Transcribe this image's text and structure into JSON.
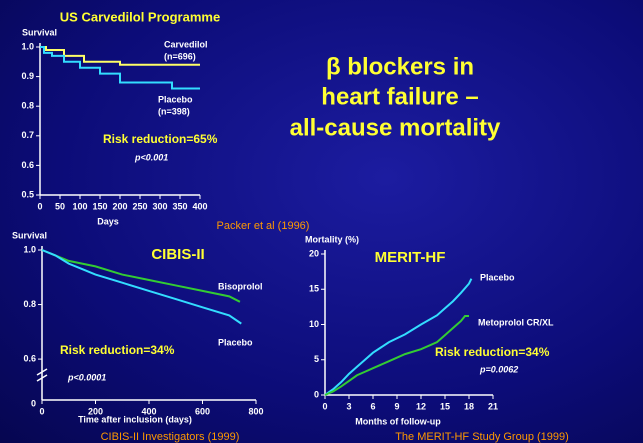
{
  "title": [
    "β blockers  in",
    "heart failure –",
    "all-cause  mortality"
  ],
  "chart_data": [
    {
      "type": "line",
      "title": "US Carvedilol Programme",
      "ylabel": "Survival",
      "xlabel": "Days",
      "xlim": [
        0,
        400
      ],
      "xticks": [
        0,
        50,
        100,
        150,
        200,
        250,
        300,
        350,
        400
      ],
      "ylim": [
        0.5,
        1.0
      ],
      "yticks": [
        0.5,
        0.6,
        0.7,
        0.8,
        0.9,
        {
          "value": 1,
          "label": "1.0"
        }
      ],
      "series": [
        {
          "name": "Carvedilol",
          "n_label": "(n=696)",
          "color": "#ffff66",
          "x": [
            0,
            15,
            15,
            60,
            60,
            110,
            110,
            200,
            200,
            400
          ],
          "values": [
            1,
            1,
            0.99,
            0.99,
            0.97,
            0.97,
            0.95,
            0.95,
            0.94,
            0.94
          ]
        },
        {
          "name": "Placebo",
          "n_label": "(n=398)",
          "color": "#33ddff",
          "x": [
            0,
            10,
            10,
            30,
            30,
            60,
            60,
            100,
            100,
            150,
            150,
            200,
            200,
            330,
            330,
            400
          ],
          "values": [
            1,
            1,
            0.98,
            0.98,
            0.97,
            0.97,
            0.95,
            0.95,
            0.93,
            0.93,
            0.91,
            0.91,
            0.88,
            0.88,
            0.86,
            0.86
          ]
        }
      ],
      "annotations": [
        "Risk reduction=65%",
        "p<0.001"
      ],
      "source": "Packer et al (1996)"
    },
    {
      "type": "line",
      "title": "CIBIS-II",
      "ylabel": "Survival",
      "xlabel": "Time after inclusion (days)",
      "xlim": [
        0,
        800
      ],
      "xticks": [
        0,
        200,
        400,
        600,
        800
      ],
      "ylim": [
        0.45,
        1.0
      ],
      "yticks": [
        0.6,
        0.8,
        {
          "value": 1,
          "label": "1.0"
        }
      ],
      "y_break_tick": 0,
      "series": [
        {
          "name": "Bisoprolol",
          "color": "#33cc33",
          "x": [
            0,
            50,
            100,
            150,
            200,
            300,
            400,
            500,
            600,
            700,
            740
          ],
          "values": [
            1,
            0.98,
            0.96,
            0.95,
            0.94,
            0.91,
            0.89,
            0.87,
            0.85,
            0.83,
            0.81
          ]
        },
        {
          "name": "Placebo",
          "color": "#33ddff",
          "x": [
            0,
            50,
            100,
            150,
            200,
            300,
            400,
            500,
            600,
            700,
            745
          ],
          "values": [
            1,
            0.98,
            0.95,
            0.93,
            0.91,
            0.88,
            0.85,
            0.82,
            0.79,
            0.76,
            0.73
          ]
        }
      ],
      "annotations": [
        "Risk reduction=34%",
        "p<0.0001"
      ],
      "source": "CIBIS-II Investigators  (1999)"
    },
    {
      "type": "line",
      "title": "MERIT-HF",
      "ylabel": "Mortality (%)",
      "xlabel": "Months of follow-up",
      "xlim": [
        0,
        21
      ],
      "xticks": [
        0,
        3,
        6,
        9,
        12,
        15,
        18,
        21
      ],
      "ylim": [
        0,
        20
      ],
      "yticks": [
        0,
        5,
        10,
        15,
        20
      ],
      "series": [
        {
          "name": "Placebo",
          "color": "#33ddff",
          "x": [
            0,
            1,
            2,
            3,
            4,
            5,
            6,
            8,
            10,
            12,
            14,
            15,
            16,
            17,
            18,
            18.3
          ],
          "values": [
            0,
            0.8,
            1.8,
            3,
            4,
            5,
            6,
            7.5,
            8.6,
            10,
            11.3,
            12.3,
            13.3,
            14.5,
            15.8,
            16.5
          ]
        },
        {
          "name": "Metoprolol CR/XL",
          "color": "#33cc33",
          "x": [
            0,
            1,
            2,
            3,
            4,
            5,
            6,
            8,
            10,
            12,
            14,
            15,
            16,
            17,
            17.5,
            18
          ],
          "values": [
            0,
            0.5,
            1.2,
            2,
            2.8,
            3.3,
            3.8,
            4.8,
            5.8,
            6.5,
            7.5,
            8.5,
            9.5,
            10.5,
            11.2,
            11.2
          ]
        }
      ],
      "annotations": [
        "Risk reduction=34%",
        "p=0.0062"
      ],
      "source": "The MERIT-HF Study Group (1999)"
    }
  ]
}
